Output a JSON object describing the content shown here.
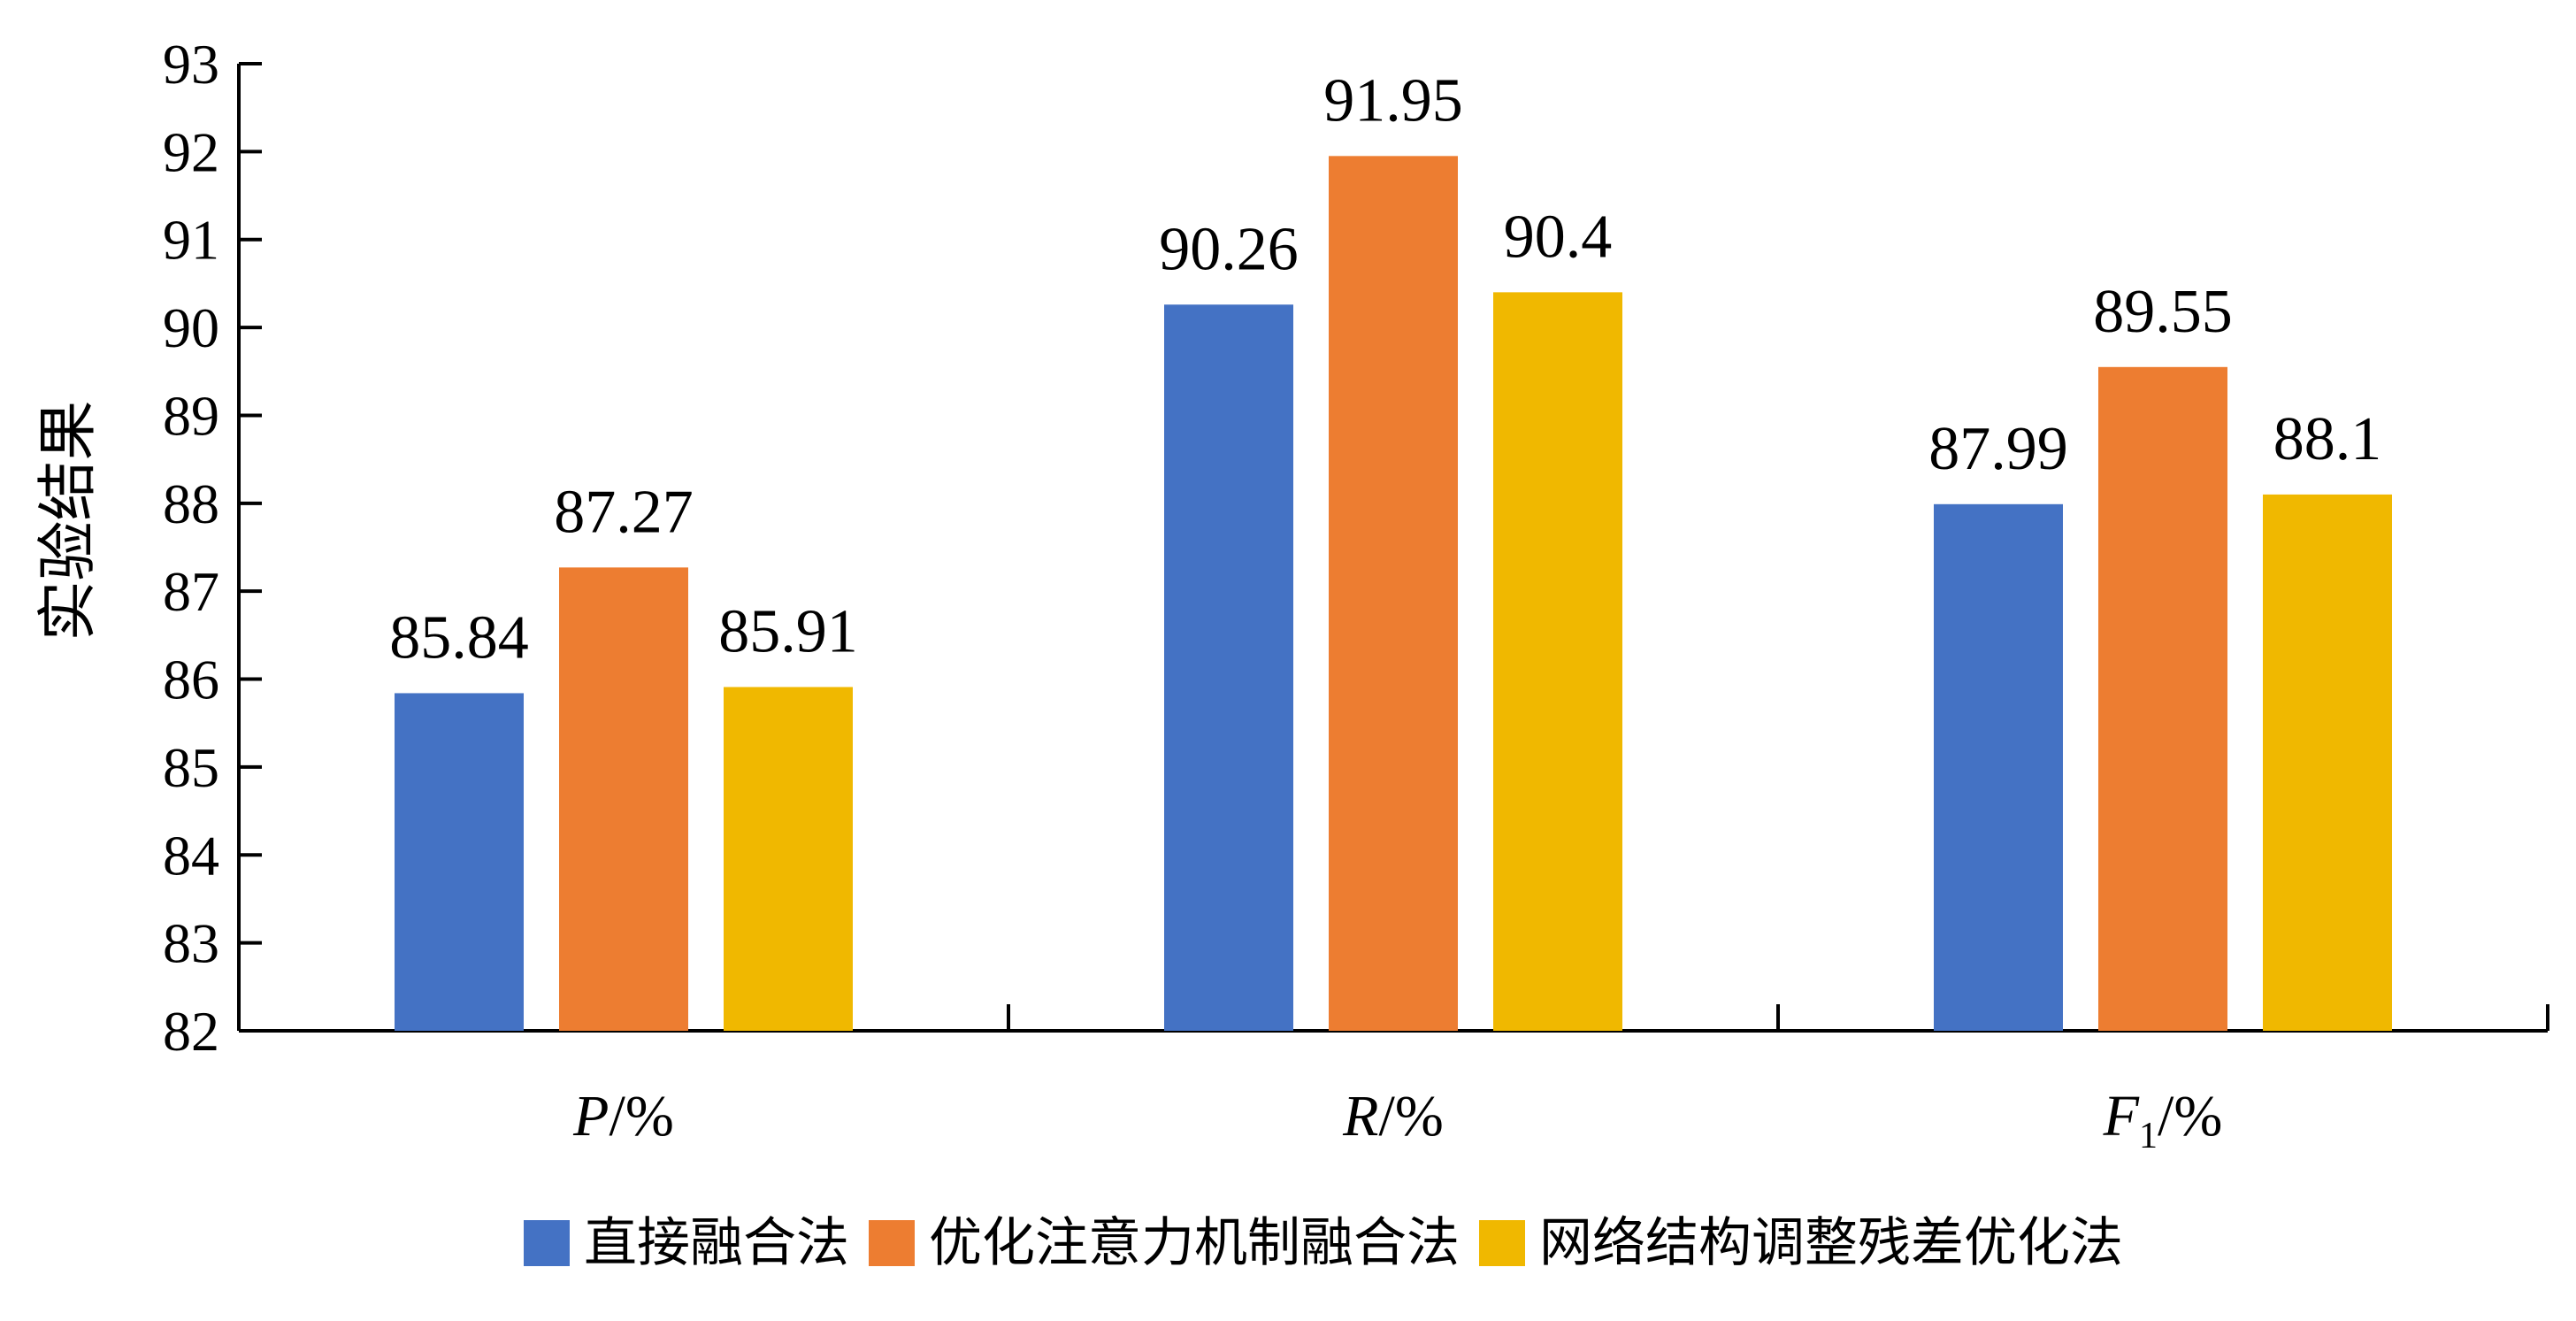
{
  "chart_data": {
    "type": "bar",
    "title": "",
    "ylabel": "实验结果",
    "ylim": [
      82,
      93
    ],
    "yticks": [
      82,
      83,
      84,
      85,
      86,
      87,
      88,
      89,
      90,
      91,
      92,
      93
    ],
    "grid": false,
    "legend_position": "bottom",
    "categories": [
      {
        "italic": "P",
        "sub": "",
        "suffix": "/%"
      },
      {
        "italic": "R",
        "sub": "",
        "suffix": "/%"
      },
      {
        "italic": "F",
        "sub": "1",
        "suffix": "/%"
      }
    ],
    "series": [
      {
        "name": "直接融合法",
        "color": "#4472C4",
        "values": [
          85.84,
          90.26,
          87.99
        ],
        "labels": [
          "85.84",
          "90.26",
          "87.99"
        ]
      },
      {
        "name": "优化注意力机制融合法",
        "color": "#ED7D31",
        "values": [
          87.27,
          91.95,
          89.55
        ],
        "labels": [
          "87.27",
          "91.95",
          "89.55"
        ]
      },
      {
        "name": "网络结构调整残差优化法",
        "color": "#F0B800",
        "values": [
          85.91,
          90.4,
          88.1
        ],
        "labels": [
          "85.91",
          "90.4",
          "88.1"
        ]
      }
    ]
  }
}
